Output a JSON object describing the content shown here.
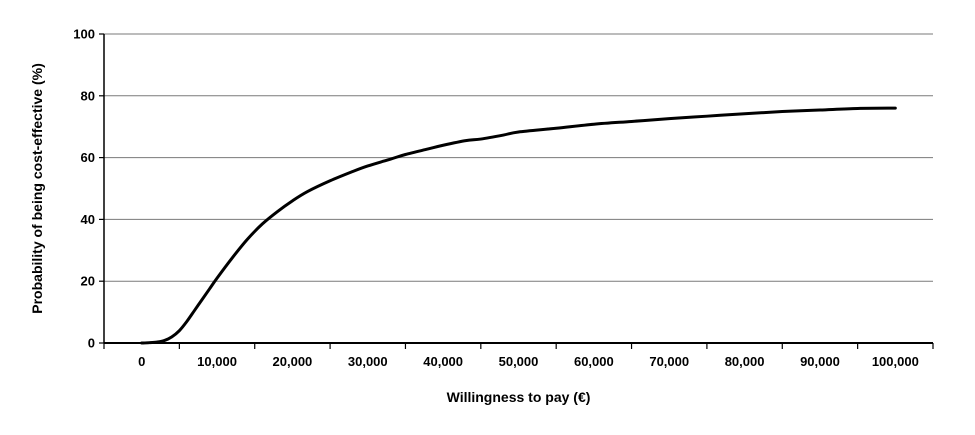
{
  "chart_data": {
    "type": "line",
    "title": "",
    "xlabel": "Willingness to pay (€)",
    "ylabel": "Probability of being cost-effective (%)",
    "xlim": [
      -5000,
      105000
    ],
    "ylim": [
      0,
      100
    ],
    "x_ticks": [
      0,
      10000,
      20000,
      30000,
      40000,
      50000,
      60000,
      70000,
      80000,
      90000,
      100000
    ],
    "x_tick_labels": [
      "0",
      "10,000",
      "20,000",
      "30,000",
      "40,000",
      "50,000",
      "60,000",
      "70,000",
      "80,000",
      "90,000",
      "100,000"
    ],
    "y_ticks": [
      0,
      20,
      40,
      60,
      80,
      100
    ],
    "y_tick_labels": [
      "0",
      "20",
      "40",
      "60",
      "80",
      "100"
    ],
    "grid": "horizontal",
    "series": [
      {
        "color": "#000000",
        "x": [
          0,
          1000,
          2000,
          3000,
          4000,
          5000,
          6000,
          7000,
          8000,
          9000,
          10000,
          12000,
          14000,
          16000,
          18000,
          20000,
          22000,
          25000,
          28000,
          30000,
          33000,
          35000,
          38000,
          40000,
          43000,
          45000,
          48000,
          50000,
          55000,
          60000,
          65000,
          70000,
          75000,
          80000,
          85000,
          90000,
          95000,
          100000
        ],
        "y": [
          0,
          0.1,
          0.3,
          0.8,
          2.0,
          4.0,
          7.0,
          10.5,
          14.0,
          17.5,
          21.0,
          27.5,
          33.5,
          38.5,
          42.5,
          46.0,
          49.0,
          52.5,
          55.5,
          57.3,
          59.5,
          61.0,
          62.8,
          64.0,
          65.5,
          66.0,
          67.3,
          68.3,
          69.5,
          70.8,
          71.7,
          72.6,
          73.4,
          74.2,
          74.9,
          75.4,
          75.9,
          76.0
        ]
      }
    ]
  }
}
